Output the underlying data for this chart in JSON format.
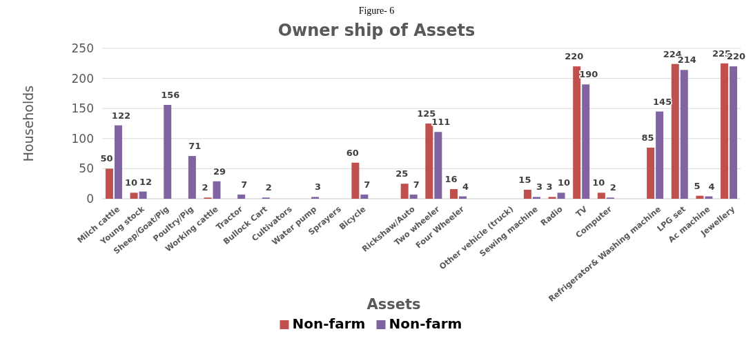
{
  "chart_data": {
    "type": "bar",
    "title": "Owner ship of Assets",
    "xlabel": "Assets",
    "ylabel": "Households",
    "annotations": [
      "Figure- 6"
    ],
    "categories": [
      "Milch cattle",
      "Young stock",
      "Sheep/Goat/Pig",
      "Poultry/Pig",
      "Working cattle",
      "Tractor",
      "Bullock Cart",
      "Cultivators",
      "Water pump",
      "Sprayers",
      "Bicycle",
      null,
      "Rickshaw/Auto",
      "Two wheeler",
      "Four Wheeler",
      null,
      "Other vehicle (truck)",
      "Sewing machine",
      "Radio",
      "TV",
      "Computer",
      null,
      "Refrigerator& Washing machine",
      "LPG set",
      "Ac machine",
      "Jewellery"
    ],
    "series": [
      {
        "name": "Non-farm",
        "color": "#c0504d",
        "values": [
          50,
          10,
          null,
          null,
          2,
          null,
          null,
          null,
          null,
          null,
          60,
          null,
          25,
          125,
          16,
          null,
          null,
          15,
          3,
          220,
          10,
          null,
          85,
          224,
          5,
          225
        ]
      },
      {
        "name": "Non-farm",
        "color": "#8064a2",
        "values": [
          122,
          12,
          156,
          71,
          29,
          7,
          2,
          null,
          3,
          null,
          7,
          null,
          7,
          111,
          4,
          null,
          null,
          3,
          10,
          190,
          2,
          null,
          145,
          214,
          4,
          220
        ]
      }
    ],
    "ylim": [
      0,
      250
    ],
    "yticks": [
      0,
      50,
      100,
      150,
      200,
      250
    ],
    "grid": "y",
    "data_labels": true,
    "legend": "bottom"
  }
}
